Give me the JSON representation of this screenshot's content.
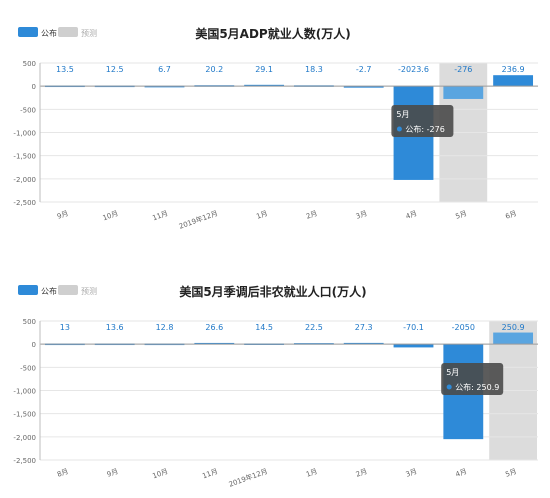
{
  "legend": {
    "published_label": "公布",
    "forecast_label": "预测",
    "published_color": "#2e8ad8",
    "forecast_color": "#cfcfcf"
  },
  "colors": {
    "bar": "#2e8ad8",
    "bar_highlight": "#5aa5e0",
    "band": "#dcdcdc",
    "grid": "#e6e6e6",
    "axis_text": "#666666",
    "value_text": "#1f78c8",
    "tooltip_bg": "#4a4a4a"
  },
  "chart_data": [
    {
      "type": "bar",
      "title": "美国5月ADP就业人数(万人)",
      "categories": [
        "9月",
        "10月",
        "11月",
        "2019年12月",
        "1月",
        "2月",
        "3月",
        "4月",
        "5月",
        "6月"
      ],
      "values": [
        13.5,
        12.5,
        6.7,
        20.2,
        29.1,
        18.3,
        -2.7,
        -2023.6,
        -276,
        236.9
      ],
      "value_labels": [
        "13.5",
        "12.5",
        "6.7",
        "20.2",
        "29.1",
        "18.3",
        "-2.7",
        "-2023.6",
        "-276",
        "236.9"
      ],
      "ylim": [
        -2500,
        500
      ],
      "yticks": [
        500,
        0,
        -500,
        -1000,
        -1500,
        -2000,
        -2500
      ],
      "ytick_labels": [
        "500",
        "0",
        "-500",
        "-1,000",
        "-1,500",
        "-2,000",
        "-2,500"
      ],
      "highlight_index": 8,
      "lighter_bar_index": 8,
      "grid": true,
      "legend_position": "top-left",
      "tooltip": {
        "title": "5月",
        "series": "公布",
        "value": "-276"
      }
    },
    {
      "type": "bar",
      "title": "美国5月季调后非农就业人口(万人)",
      "categories": [
        "8月",
        "9月",
        "10月",
        "11月",
        "2019年12月",
        "1月",
        "2月",
        "3月",
        "4月",
        "5月"
      ],
      "values": [
        13,
        13.6,
        12.8,
        26.6,
        14.5,
        22.5,
        27.3,
        -70.1,
        -2050,
        250.9
      ],
      "value_labels": [
        "13",
        "13.6",
        "12.8",
        "26.6",
        "14.5",
        "22.5",
        "27.3",
        "-70.1",
        "-2050",
        "250.9"
      ],
      "ylim": [
        -2500,
        500
      ],
      "yticks": [
        500,
        0,
        -500,
        -1000,
        -1500,
        -2000,
        -2500
      ],
      "ytick_labels": [
        "500",
        "0",
        "-500",
        "-1,000",
        "-1,500",
        "-2,000",
        "-2,500"
      ],
      "highlight_index": 9,
      "lighter_bar_index": 9,
      "grid": true,
      "legend_position": "top-left",
      "tooltip": {
        "title": "5月",
        "series": "公布",
        "value": "250.9"
      }
    }
  ]
}
